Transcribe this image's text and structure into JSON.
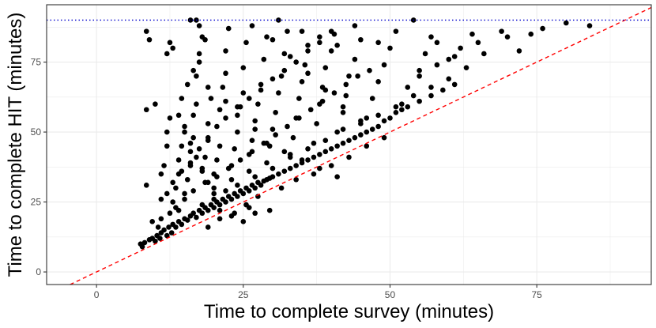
{
  "chart_data": {
    "type": "scatter",
    "title": "",
    "xlabel": "Time to complete survey (minutes)",
    "ylabel": "Time to complete HIT (minutes)",
    "xlim": [
      -8.5,
      94.5
    ],
    "ylim": [
      -4.5,
      95.5
    ],
    "x_ticks": [
      0,
      25,
      50,
      75
    ],
    "y_ticks": [
      0,
      25,
      50,
      75
    ],
    "grid": true,
    "legend": "none",
    "reference_lines": [
      {
        "kind": "identity",
        "style": "dashed",
        "color": "#ff0000"
      },
      {
        "kind": "horizontal",
        "y": 90,
        "style": "dotted",
        "color": "#0000cc"
      }
    ],
    "point_color": "#000000",
    "series": [
      {
        "values": [
          [
            7.5,
            10
          ],
          [
            7.8,
            9
          ],
          [
            8.2,
            10.5
          ],
          [
            9,
            11.5
          ],
          [
            9.5,
            12
          ],
          [
            10,
            11
          ],
          [
            10.3,
            13
          ],
          [
            10.8,
            12
          ],
          [
            11,
            14
          ],
          [
            11.5,
            15
          ],
          [
            12,
            13
          ],
          [
            12.3,
            16
          ],
          [
            12.8,
            14
          ],
          [
            13,
            17
          ],
          [
            13.5,
            16
          ],
          [
            14,
            18
          ],
          [
            14.5,
            17
          ],
          [
            15,
            19
          ],
          [
            15.5,
            18.5
          ],
          [
            16,
            20
          ],
          [
            16.5,
            21
          ],
          [
            17,
            19.5
          ],
          [
            17.5,
            22
          ],
          [
            18,
            21
          ],
          [
            18.5,
            23
          ],
          [
            19,
            22
          ],
          [
            19.5,
            24
          ],
          [
            20,
            23
          ],
          [
            20.5,
            25
          ],
          [
            21,
            24
          ],
          [
            21.5,
            26
          ],
          [
            22,
            25
          ],
          [
            22.5,
            27
          ],
          [
            23,
            26
          ],
          [
            23.5,
            28
          ],
          [
            24,
            27
          ],
          [
            24.5,
            29
          ],
          [
            25,
            28
          ],
          [
            25.5,
            30
          ],
          [
            26,
            29
          ],
          [
            26.5,
            31
          ],
          [
            27,
            30
          ],
          [
            27.5,
            32
          ],
          [
            28,
            31
          ],
          [
            28.5,
            32.5
          ],
          [
            29,
            33
          ],
          [
            29.5,
            33.5
          ],
          [
            30,
            34
          ],
          [
            31,
            35
          ],
          [
            32,
            36
          ],
          [
            33,
            37
          ],
          [
            34,
            38
          ],
          [
            35,
            39
          ],
          [
            36,
            40
          ],
          [
            37,
            41
          ],
          [
            38,
            42
          ],
          [
            39,
            43
          ],
          [
            40,
            44
          ],
          [
            41,
            45
          ],
          [
            42,
            46
          ],
          [
            43,
            47
          ],
          [
            44,
            48
          ],
          [
            45,
            49
          ],
          [
            46,
            50
          ],
          [
            47,
            51
          ],
          [
            48,
            52
          ],
          [
            49,
            54
          ],
          [
            50,
            55
          ],
          [
            51,
            57
          ],
          [
            52,
            58
          ],
          [
            53,
            59
          ],
          [
            55,
            61
          ],
          [
            57,
            63
          ],
          [
            59,
            65
          ],
          [
            61,
            67
          ],
          [
            8.5,
            31
          ],
          [
            8.5,
            58
          ],
          [
            8.5,
            86
          ],
          [
            9,
            83
          ],
          [
            10,
            60
          ],
          [
            11,
            35
          ],
          [
            11.5,
            38
          ],
          [
            12,
            45
          ],
          [
            12,
            50
          ],
          [
            12.5,
            55
          ],
          [
            12,
            78
          ],
          [
            12.5,
            82
          ],
          [
            13,
            80
          ],
          [
            13,
            25
          ],
          [
            13.5,
            30
          ],
          [
            14,
            35
          ],
          [
            14,
            40
          ],
          [
            14.5,
            45
          ],
          [
            15,
            50
          ],
          [
            15,
            28
          ],
          [
            15.5,
            33
          ],
          [
            16,
            38
          ],
          [
            16,
            43
          ],
          [
            16.5,
            48
          ],
          [
            16.5,
            56
          ],
          [
            17,
            60
          ],
          [
            17,
            70
          ],
          [
            17.5,
            75
          ],
          [
            17.5,
            88
          ],
          [
            18,
            84
          ],
          [
            18,
            36
          ],
          [
            18.5,
            41
          ],
          [
            19,
            47
          ],
          [
            19,
            53
          ],
          [
            19.5,
            62
          ],
          [
            20,
            30
          ],
          [
            20,
            35
          ],
          [
            20.5,
            40
          ],
          [
            21,
            45
          ],
          [
            21,
            58
          ],
          [
            21.5,
            66
          ],
          [
            22,
            71
          ],
          [
            22,
            79
          ],
          [
            23,
            33
          ],
          [
            23,
            38
          ],
          [
            23.5,
            44
          ],
          [
            24,
            50
          ],
          [
            24.5,
            59
          ],
          [
            25,
            64
          ],
          [
            25,
            73
          ],
          [
            25.5,
            82
          ],
          [
            26,
            36
          ],
          [
            26,
            42
          ],
          [
            26.5,
            47
          ],
          [
            27,
            54
          ],
          [
            27.5,
            60
          ],
          [
            28,
            67
          ],
          [
            28.5,
            76
          ],
          [
            29,
            84
          ],
          [
            29,
            39
          ],
          [
            29.5,
            45
          ],
          [
            30,
            51
          ],
          [
            30.5,
            57
          ],
          [
            31,
            64
          ],
          [
            31.5,
            70
          ],
          [
            32,
            78
          ],
          [
            32.5,
            86
          ],
          [
            33,
            42
          ],
          [
            33.5,
            48
          ],
          [
            34,
            55
          ],
          [
            34.5,
            62
          ],
          [
            35,
            68
          ],
          [
            35.5,
            74
          ],
          [
            36,
            81
          ],
          [
            37,
            46
          ],
          [
            37.5,
            53
          ],
          [
            38,
            60
          ],
          [
            38.5,
            66
          ],
          [
            39,
            73
          ],
          [
            40,
            79
          ],
          [
            40.5,
            85
          ],
          [
            41,
            50
          ],
          [
            42,
            57
          ],
          [
            42.5,
            63
          ],
          [
            43,
            70
          ],
          [
            44,
            76
          ],
          [
            45,
            83
          ],
          [
            46,
            55
          ],
          [
            47,
            62
          ],
          [
            48,
            68
          ],
          [
            49,
            74
          ],
          [
            50,
            80
          ],
          [
            51,
            86
          ],
          [
            52,
            60
          ],
          [
            53,
            66
          ],
          [
            55,
            72
          ],
          [
            56,
            78
          ],
          [
            58,
            82
          ],
          [
            60,
            76
          ],
          [
            62,
            80
          ],
          [
            64,
            85
          ],
          [
            66,
            78
          ],
          [
            69,
            86
          ],
          [
            72,
            79
          ],
          [
            76,
            87
          ],
          [
            80,
            89
          ],
          [
            84,
            88
          ],
          [
            16,
            90
          ],
          [
            17,
            90
          ],
          [
            31,
            90
          ],
          [
            26,
            23
          ],
          [
            29.5,
            22
          ],
          [
            14,
            22
          ],
          [
            18,
            24
          ],
          [
            20,
            26
          ],
          [
            22,
            29
          ],
          [
            24,
            31
          ],
          [
            27,
            34
          ],
          [
            30,
            37
          ],
          [
            33,
            41
          ],
          [
            36,
            44
          ],
          [
            39,
            47
          ],
          [
            42,
            51
          ],
          [
            45,
            54
          ],
          [
            48,
            56
          ],
          [
            51,
            59
          ],
          [
            54,
            63
          ],
          [
            57,
            66
          ],
          [
            60,
            69
          ],
          [
            10.5,
            16
          ],
          [
            11,
            19
          ],
          [
            12.5,
            21
          ],
          [
            13.5,
            23
          ],
          [
            15,
            26
          ],
          [
            16.5,
            29
          ],
          [
            18.5,
            32
          ],
          [
            20.5,
            34
          ],
          [
            22.5,
            37
          ],
          [
            24.5,
            40
          ],
          [
            26.5,
            43
          ],
          [
            28.5,
            46
          ],
          [
            30.5,
            49
          ],
          [
            32.5,
            52
          ],
          [
            34.5,
            55
          ],
          [
            36.5,
            58
          ],
          [
            38.5,
            61
          ],
          [
            40.5,
            64
          ],
          [
            42.5,
            67
          ],
          [
            44.5,
            70
          ],
          [
            46.5,
            72
          ],
          [
            19,
            16
          ],
          [
            21,
            19
          ],
          [
            23.5,
            21
          ],
          [
            25.5,
            24
          ],
          [
            27.5,
            27
          ],
          [
            31.5,
            30
          ],
          [
            34,
            33
          ],
          [
            37,
            35
          ],
          [
            40,
            38
          ],
          [
            43,
            41
          ],
          [
            46,
            45
          ],
          [
            49,
            48
          ],
          [
            35,
            86
          ],
          [
            38,
            84
          ],
          [
            41,
            81
          ],
          [
            44,
            88
          ],
          [
            48,
            82
          ],
          [
            54,
            90
          ],
          [
            57,
            84
          ],
          [
            63,
            73
          ],
          [
            19,
            66
          ],
          [
            22,
            61
          ],
          [
            24,
            56
          ],
          [
            27,
            51
          ],
          [
            29,
            46
          ],
          [
            32,
            43
          ],
          [
            35,
            40
          ],
          [
            38,
            37
          ],
          [
            41,
            34
          ],
          [
            14.5,
            62
          ],
          [
            15.5,
            67
          ],
          [
            16.5,
            72
          ],
          [
            17.5,
            78
          ],
          [
            18.5,
            83
          ],
          [
            22.5,
            87
          ],
          [
            26.5,
            88
          ],
          [
            30,
            83
          ],
          [
            33,
            77
          ],
          [
            36,
            71
          ],
          [
            39,
            65
          ],
          [
            42,
            59
          ],
          [
            45,
            53
          ],
          [
            14,
            56
          ],
          [
            15,
            52
          ],
          [
            16,
            46
          ],
          [
            17,
            41
          ],
          [
            18,
            37
          ],
          [
            19,
            32
          ],
          [
            20,
            28
          ],
          [
            21,
            22
          ],
          [
            23,
            20
          ],
          [
            25,
            18
          ],
          [
            27,
            21
          ],
          [
            9.5,
            18
          ],
          [
            11,
            26
          ],
          [
            12,
            28
          ],
          [
            13,
            32
          ],
          [
            14.5,
            36
          ],
          [
            16,
            39
          ],
          [
            17.5,
            44
          ],
          [
            19,
            48
          ],
          [
            20.5,
            52
          ],
          [
            22,
            55
          ],
          [
            24,
            59
          ],
          [
            26,
            62
          ],
          [
            28,
            65
          ],
          [
            30,
            69
          ],
          [
            32,
            72
          ],
          [
            34,
            75
          ],
          [
            36,
            79
          ],
          [
            38,
            82
          ],
          [
            40,
            86
          ],
          [
            55,
            70
          ],
          [
            58,
            74
          ],
          [
            61,
            77
          ],
          [
            65,
            82
          ],
          [
            70,
            84
          ],
          [
            74,
            85
          ]
        ]
      }
    ]
  }
}
